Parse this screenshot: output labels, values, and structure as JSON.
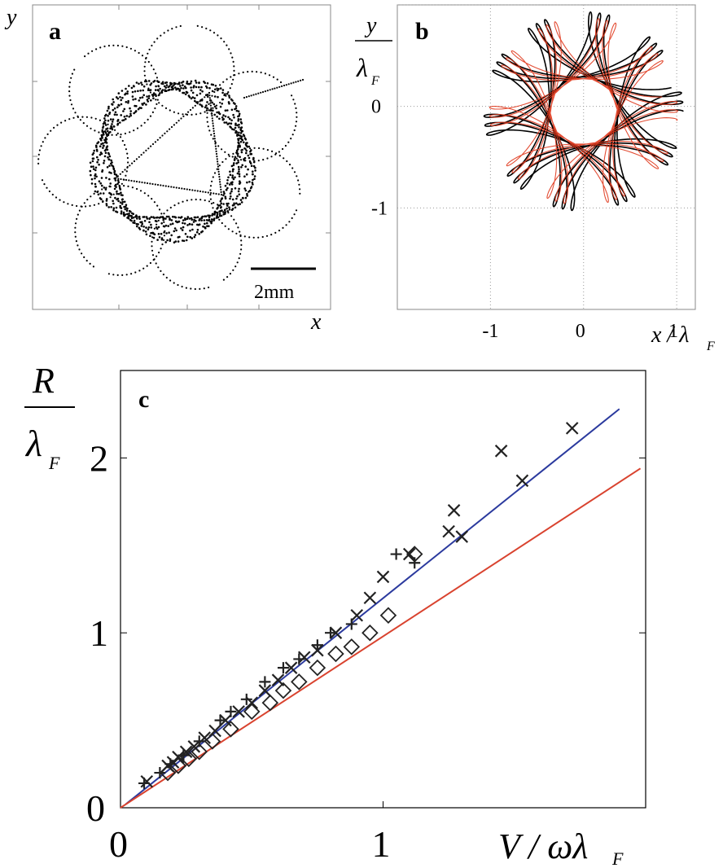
{
  "chart_data": [
    {
      "panel": "a",
      "type": "scatter",
      "title": "",
      "xlabel": "x",
      "ylabel": "y",
      "scale_bar_label": "2mm",
      "grid": false,
      "description_series": "droplet trajectory (dotted)",
      "trajectory": {
        "center": [
          0,
          0
        ],
        "main_radius": 1.0,
        "loop_radius": 0.28,
        "turns": 9,
        "units": "relative"
      }
    },
    {
      "panel": "b",
      "type": "line",
      "title": "",
      "xlabel": "x / λF",
      "ylabel": "y / λF",
      "x_ticks": [
        "-1",
        "0",
        "1"
      ],
      "y_ticks": [
        "-1",
        "0"
      ],
      "xlim": [
        -2,
        1.2
      ],
      "ylim": [
        -2,
        1.0
      ],
      "grid": true,
      "series": [
        {
          "color": "#000000",
          "main_radius": 0.72,
          "loop_radius": 0.35
        },
        {
          "color": "#e03a1e",
          "main_radius": 0.68,
          "loop_radius": 0.33
        }
      ]
    },
    {
      "panel": "c",
      "type": "scatter",
      "title": "",
      "xlabel": "V / ωλF",
      "ylabel": "R / λF",
      "x_ticks": [
        "0",
        "1"
      ],
      "y_ticks": [
        "0",
        "1",
        "2"
      ],
      "xlim": [
        0,
        2.0
      ],
      "ylim": [
        0,
        2.5
      ],
      "grid": false,
      "lines": [
        {
          "color": "#2b3a9e",
          "points": [
            [
              0.02,
              0.02
            ],
            [
              1.9,
              2.28
            ]
          ]
        },
        {
          "color": "#d9432f",
          "points": [
            [
              0.0,
              0.0
            ],
            [
              1.98,
              1.94
            ]
          ]
        }
      ],
      "series": [
        {
          "marker": "x",
          "points": [
            [
              0.1,
              0.15
            ],
            [
              0.18,
              0.24
            ],
            [
              0.2,
              0.26
            ],
            [
              0.22,
              0.29
            ],
            [
              0.25,
              0.32
            ],
            [
              0.28,
              0.35
            ],
            [
              0.32,
              0.4
            ],
            [
              0.36,
              0.44
            ],
            [
              0.4,
              0.5
            ],
            [
              0.45,
              0.55
            ],
            [
              0.5,
              0.6
            ],
            [
              0.55,
              0.67
            ],
            [
              0.6,
              0.73
            ],
            [
              0.65,
              0.8
            ],
            [
              0.7,
              0.86
            ],
            [
              0.75,
              0.9
            ],
            [
              0.82,
              1.0
            ],
            [
              0.9,
              1.1
            ],
            [
              0.95,
              1.2
            ],
            [
              1.0,
              1.32
            ],
            [
              1.1,
              1.45
            ],
            [
              1.25,
              1.58
            ],
            [
              1.27,
              1.7
            ],
            [
              1.3,
              1.55
            ],
            [
              1.45,
              2.04
            ],
            [
              1.53,
              1.87
            ],
            [
              1.72,
              2.17
            ]
          ]
        },
        {
          "marker": "+",
          "points": [
            [
              0.09,
              0.14
            ],
            [
              0.15,
              0.2
            ],
            [
              0.19,
              0.25
            ],
            [
              0.24,
              0.3
            ],
            [
              0.3,
              0.38
            ],
            [
              0.38,
              0.5
            ],
            [
              0.42,
              0.55
            ],
            [
              0.48,
              0.62
            ],
            [
              0.55,
              0.72
            ],
            [
              0.62,
              0.8
            ],
            [
              0.68,
              0.85
            ],
            [
              0.75,
              0.93
            ],
            [
              0.8,
              1.0
            ],
            [
              0.88,
              1.05
            ],
            [
              1.05,
              1.45
            ],
            [
              1.12,
              1.4
            ]
          ]
        },
        {
          "marker": "diamond",
          "points": [
            [
              0.18,
              0.2
            ],
            [
              0.22,
              0.24
            ],
            [
              0.26,
              0.28
            ],
            [
              0.3,
              0.32
            ],
            [
              0.35,
              0.38
            ],
            [
              0.42,
              0.45
            ],
            [
              0.5,
              0.55
            ],
            [
              0.57,
              0.6
            ],
            [
              0.62,
              0.67
            ],
            [
              0.68,
              0.72
            ],
            [
              0.75,
              0.8
            ],
            [
              0.82,
              0.88
            ],
            [
              0.88,
              0.92
            ],
            [
              0.95,
              1.0
            ],
            [
              1.02,
              1.1
            ],
            [
              1.12,
              1.45
            ]
          ]
        }
      ]
    }
  ],
  "labels": {
    "panel_a": "a",
    "panel_b": "b",
    "panel_c": "c",
    "a_y": "y",
    "a_x": "x",
    "scale": "2mm",
    "b_y_num": "y",
    "b_y_den": "λ",
    "b_y_sub": "F",
    "b_x": "x / λ",
    "b_x_sub": "F",
    "c_y_num": "R",
    "c_y_den": "λ",
    "c_y_sub": "F",
    "c_x": "V / ωλ",
    "c_x_sub": "F"
  }
}
